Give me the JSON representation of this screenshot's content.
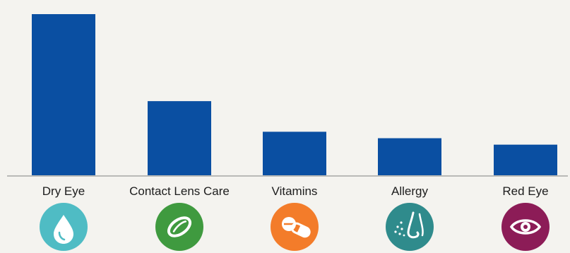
{
  "chart_data": {
    "type": "bar",
    "categories": [
      "Dry Eye",
      "Contact Lens Care",
      "Vitamins",
      "Allergy",
      "Red Eye"
    ],
    "values": [
      100,
      46,
      27,
      23,
      19
    ],
    "ylim": [
      0,
      100
    ],
    "grid": false,
    "title": "",
    "xlabel": "",
    "ylabel": ""
  },
  "icons": [
    {
      "name": "water-drop-icon",
      "color": "#4fbcc4"
    },
    {
      "name": "contact-lens-icon",
      "color": "#3f9a3f"
    },
    {
      "name": "pill-icon",
      "color": "#f37c2a"
    },
    {
      "name": "allergy-icon",
      "color": "#2f8b8c"
    },
    {
      "name": "eye-icon",
      "color": "#8c1c57"
    }
  ],
  "colors": {
    "bar": "#0a4fa2",
    "background": "#f4f3ef",
    "axis": "#b9bab7"
  }
}
